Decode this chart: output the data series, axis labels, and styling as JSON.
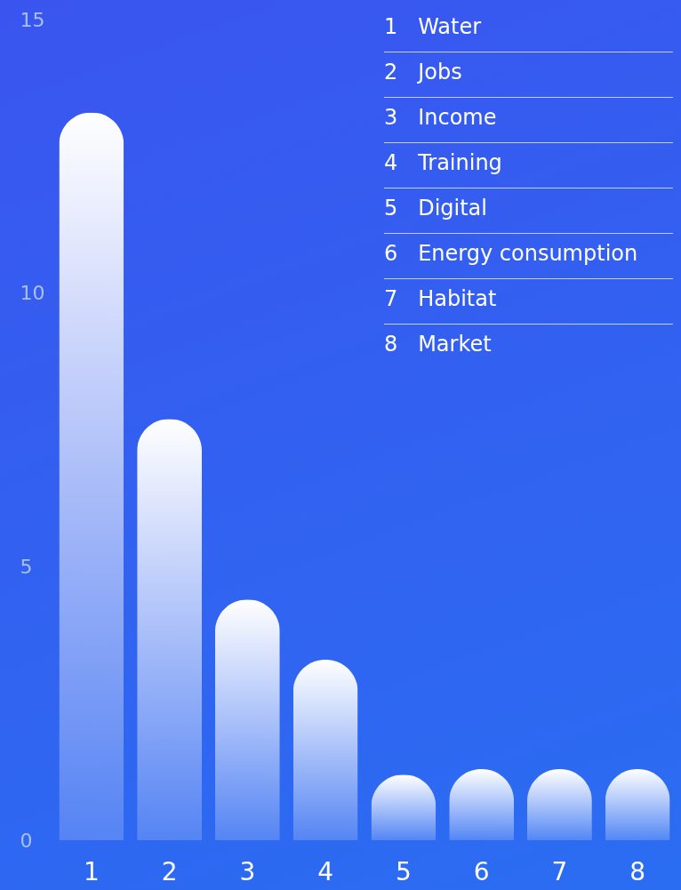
{
  "chart_data": {
    "type": "bar",
    "categories": [
      "1",
      "2",
      "3",
      "4",
      "5",
      "6",
      "7",
      "8"
    ],
    "values": [
      13.3,
      7.7,
      4.4,
      3.3,
      1.2,
      1.3,
      1.3,
      1.3
    ],
    "color": "#ffffff",
    "ylim": [
      0,
      15
    ],
    "yticks": [
      0,
      5,
      10,
      15
    ],
    "grid": false,
    "annotations": [
      "1   Water",
      "2   Jobs",
      "3   Income",
      "4   Training",
      "5   Digital",
      "6   Energy consumption",
      "7   Habitat",
      "8   Market"
    ]
  }
}
